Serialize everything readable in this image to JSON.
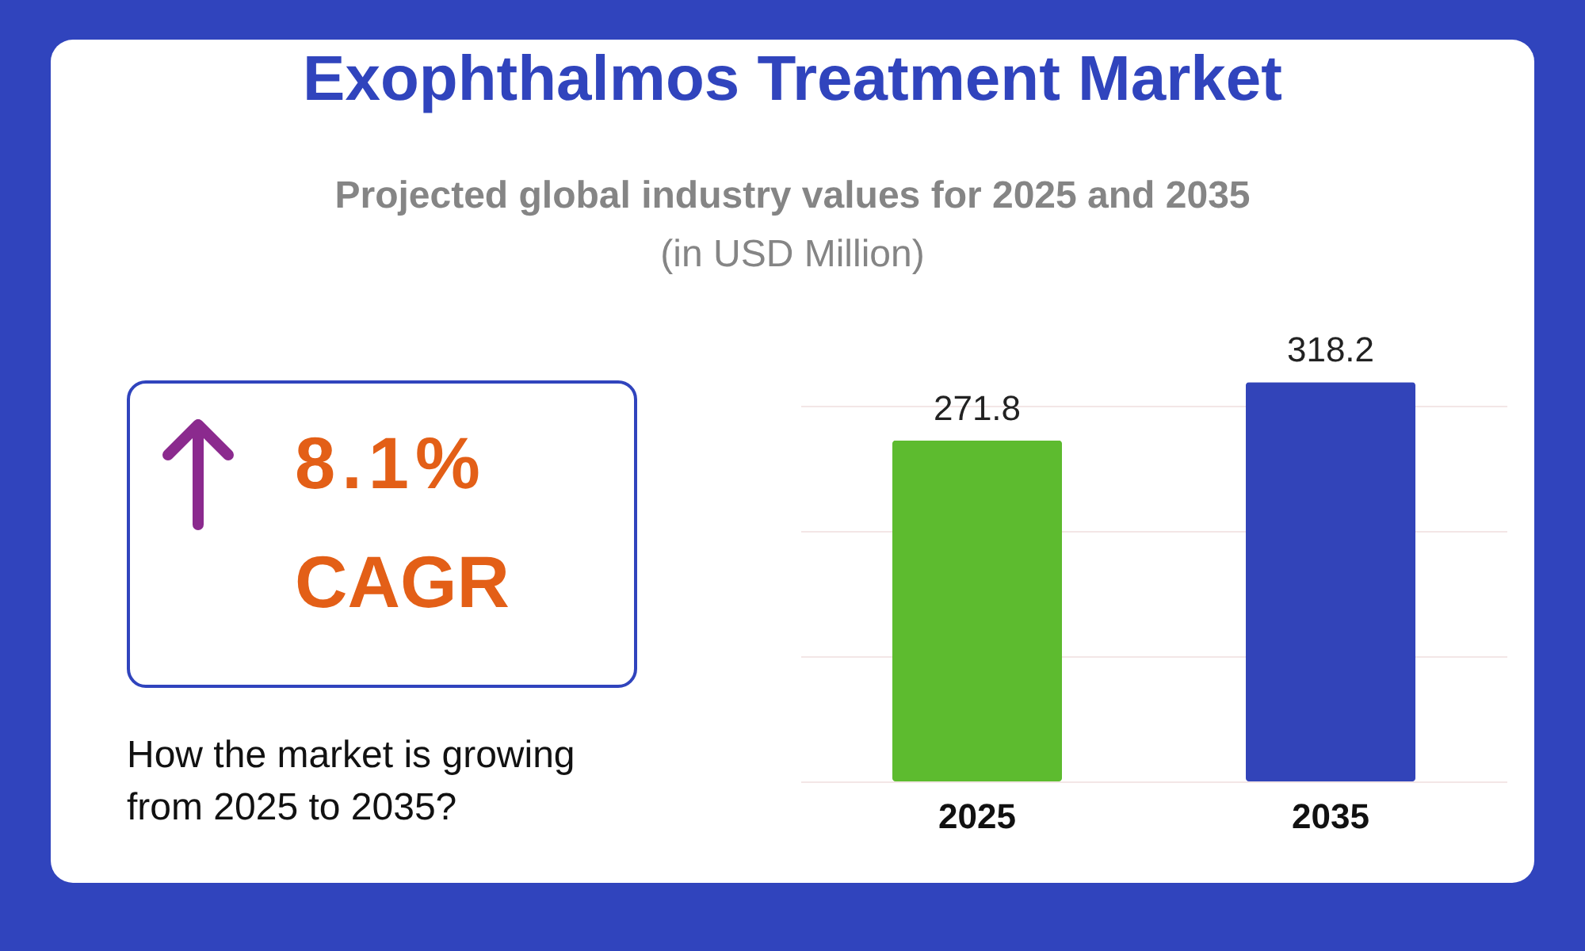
{
  "chart_data": [
    {
      "type": "other",
      "annotations": [
        "8.1%",
        "CAGR",
        "How the market is growing from 2025 to 2035?"
      ]
    },
    {
      "type": "bar",
      "title": "Exophthalmos Treatment Market",
      "subtitle": "Projected global industry values for 2025 and 2035",
      "annotations": [
        "(in USD Million)"
      ],
      "categories": [
        "2025",
        "2035"
      ],
      "values": [
        271.8,
        318.2
      ],
      "colors": [
        "#5dbb2f",
        "#3244b9"
      ],
      "data_labels": true,
      "yticks": [
        {
          "value": 0,
          "label": null
        },
        {
          "value": 100,
          "label": null
        },
        {
          "value": 200,
          "label": null
        },
        {
          "value": 300,
          "label": null
        }
      ],
      "grid": "y",
      "tick_labels": "x"
    }
  ]
}
